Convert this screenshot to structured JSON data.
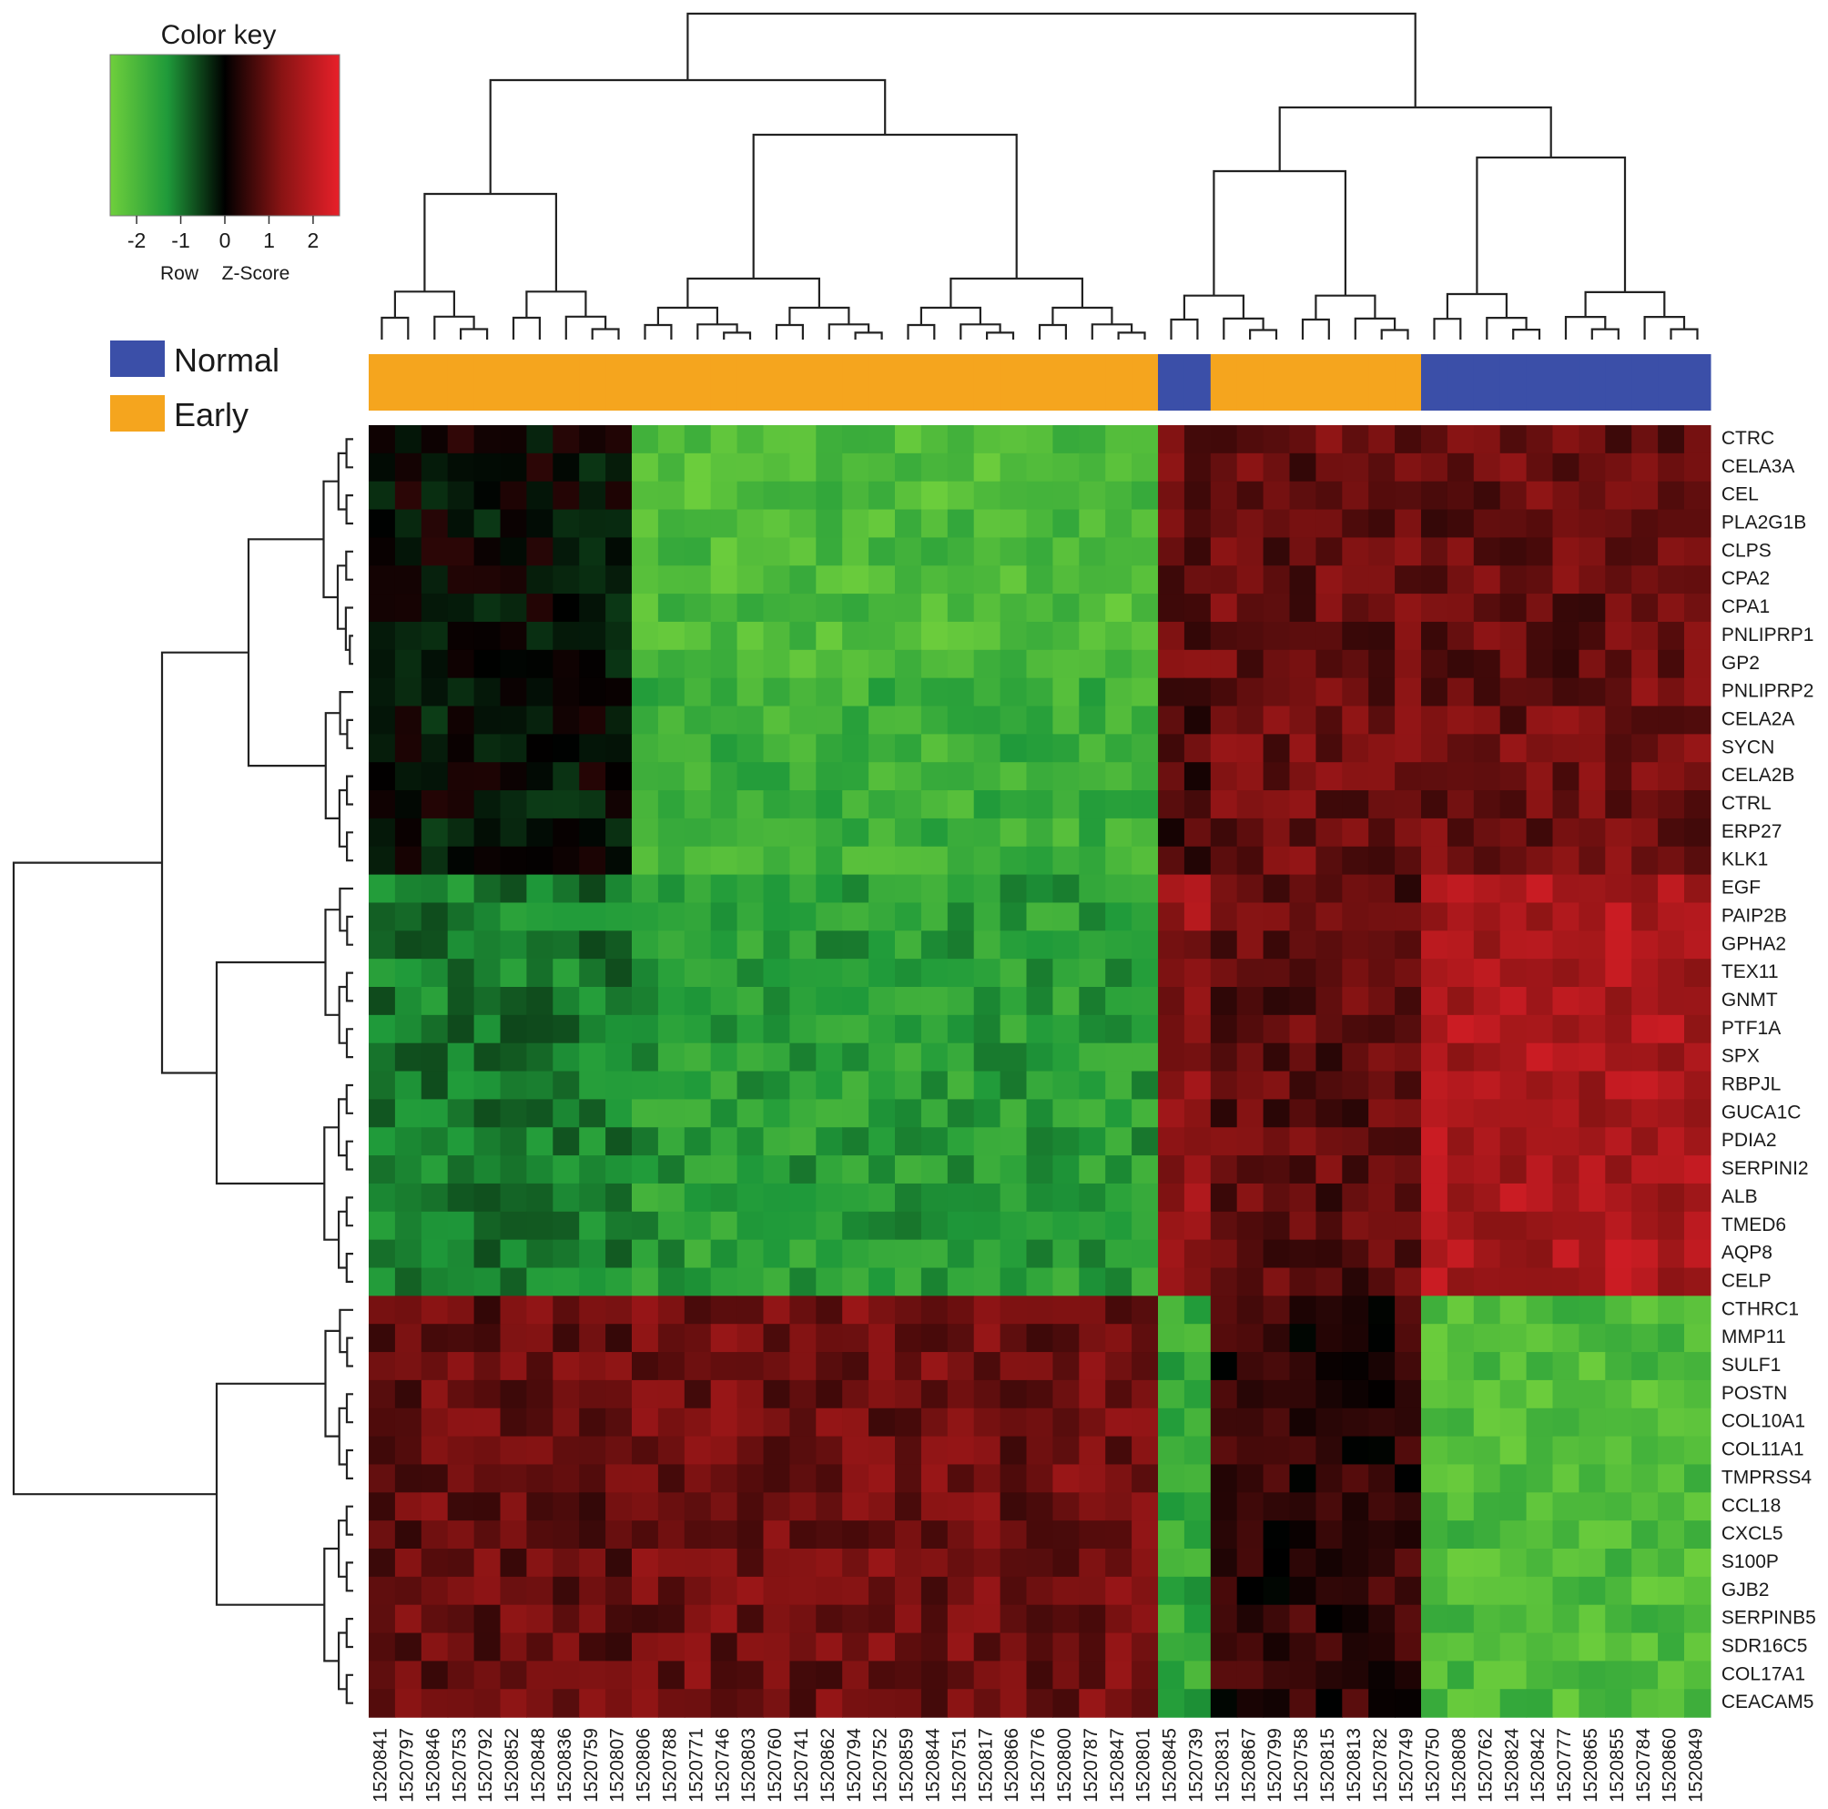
{
  "color_key": {
    "title": "Color key",
    "caption_left": "Row",
    "caption_right": "Z-Score",
    "ticks": [
      "-2",
      "-1",
      "0",
      "1",
      "2"
    ],
    "tick_values": [
      -2,
      -1,
      0,
      1,
      2
    ],
    "range": [
      -2.6,
      2.6
    ],
    "low_color": "#6fcf3c",
    "mid_color": "#000000",
    "high_color": "#e8202a"
  },
  "legend": [
    {
      "label": "Normal",
      "color": "#3b4fa8"
    },
    {
      "label": "Early",
      "color": "#f5a51e"
    }
  ],
  "chart_data": {
    "type": "heatmap",
    "title": "",
    "value_label": "Row Z-Score",
    "samples": [
      "1520841",
      "1520797",
      "1520846",
      "1520753",
      "1520792",
      "1520852",
      "1520848",
      "1520836",
      "1520759",
      "1520807",
      "1520806",
      "1520788",
      "1520771",
      "1520746",
      "1520803",
      "1520760",
      "1520741",
      "1520862",
      "1520794",
      "1520752",
      "1520859",
      "1520844",
      "1520751",
      "1520817",
      "1520866",
      "1520776",
      "1520800",
      "1520787",
      "1520847",
      "1520801",
      "1520845",
      "1520739",
      "1520831",
      "1520867",
      "1520799",
      "1520758",
      "1520815",
      "1520813",
      "1520782",
      "1520749",
      "1520750",
      "1520808",
      "1520762",
      "1520824",
      "1520842",
      "1520777",
      "1520865",
      "1520855",
      "1520784",
      "1520860",
      "1520849"
    ],
    "sample_groups": [
      "Early",
      "Early",
      "Early",
      "Early",
      "Early",
      "Early",
      "Early",
      "Early",
      "Early",
      "Early",
      "Early",
      "Early",
      "Early",
      "Early",
      "Early",
      "Early",
      "Early",
      "Early",
      "Early",
      "Early",
      "Early",
      "Early",
      "Early",
      "Early",
      "Early",
      "Early",
      "Early",
      "Early",
      "Early",
      "Early",
      "Normal",
      "Normal",
      "Early",
      "Early",
      "Early",
      "Early",
      "Early",
      "Early",
      "Early",
      "Early",
      "Normal",
      "Normal",
      "Normal",
      "Normal",
      "Normal",
      "Normal",
      "Normal",
      "Normal",
      "Normal",
      "Normal",
      "Normal"
    ],
    "genes": [
      "CTRC",
      "CELA3A",
      "CEL",
      "PLA2G1B",
      "CLPS",
      "CPA2",
      "CPA1",
      "PNLIPRP1",
      "GP2",
      "PNLIPRP2",
      "CELA2A",
      "SYCN",
      "CELA2B",
      "CTRL",
      "ERP27",
      "KLK1",
      "EGF",
      "PAIP2B",
      "GPHA2",
      "TEX11",
      "GNMT",
      "PTF1A",
      "SPX",
      "RBPJL",
      "GUCA1C",
      "PDIA2",
      "SERPINI2",
      "ALB",
      "TMED6",
      "AQP8",
      "CELP",
      "CTHRC1",
      "MMP11",
      "SULF1",
      "POSTN",
      "COL10A1",
      "COL11A1",
      "TMPRSS4",
      "CCL18",
      "CXCL5",
      "S100P",
      "GJB2",
      "SERPINB5",
      "SDR16C5",
      "COL17A1",
      "CEACAM5"
    ],
    "block_means": [
      {
        "genes": "CTRC-GP2",
        "early_left": 0.0,
        "early_right": -2.0,
        "normal_mixed": 0.9,
        "early_mid": 0.9,
        "normal_right": 0.9
      },
      {
        "genes": "PNLIPRP2-KLK1",
        "early_left": -0.1,
        "early_right": -1.7,
        "normal_mixed": 0.6,
        "early_mid": 1.0,
        "normal_right": 1.0
      },
      {
        "genes": "EGF-CELP",
        "early_left": -1.0,
        "early_right": -1.4,
        "normal_mixed": 1.4,
        "early_mid": 0.8,
        "normal_right": 1.7
      },
      {
        "genes": "CTHRC1-CEACAM5",
        "early_left": 0.9,
        "early_right": 1.0,
        "normal_mixed": -1.6,
        "early_mid": 0.4,
        "normal_right": -2.0
      }
    ]
  }
}
